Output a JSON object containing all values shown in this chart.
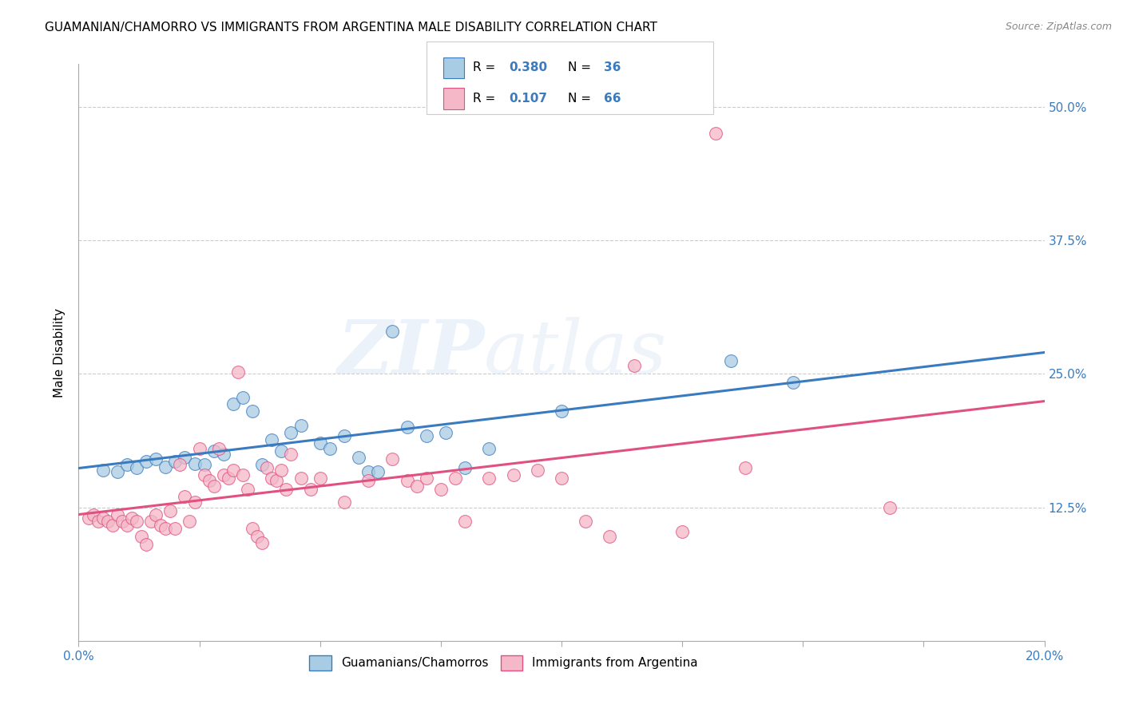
{
  "title": "GUAMANIAN/CHAMORRO VS IMMIGRANTS FROM ARGENTINA MALE DISABILITY CORRELATION CHART",
  "source": "Source: ZipAtlas.com",
  "ylabel": "Male Disability",
  "yticks": [
    "12.5%",
    "25.0%",
    "37.5%",
    "50.0%"
  ],
  "ytick_vals": [
    0.125,
    0.25,
    0.375,
    0.5
  ],
  "xlim": [
    0.0,
    0.2
  ],
  "ylim": [
    0.0,
    0.54
  ],
  "color_blue": "#a8cce4",
  "color_pink": "#f4b8c8",
  "trendline_blue": "#3a7bbf",
  "trendline_pink": "#e05080",
  "watermark_zip": "ZIP",
  "watermark_atlas": "atlas",
  "label1": "Guamanians/Chamorros",
  "label2": "Immigrants from Argentina",
  "blue_points": [
    [
      0.005,
      0.16
    ],
    [
      0.008,
      0.158
    ],
    [
      0.01,
      0.165
    ],
    [
      0.012,
      0.162
    ],
    [
      0.014,
      0.168
    ],
    [
      0.016,
      0.17
    ],
    [
      0.018,
      0.163
    ],
    [
      0.02,
      0.168
    ],
    [
      0.022,
      0.172
    ],
    [
      0.024,
      0.166
    ],
    [
      0.026,
      0.165
    ],
    [
      0.028,
      0.178
    ],
    [
      0.03,
      0.175
    ],
    [
      0.032,
      0.222
    ],
    [
      0.034,
      0.228
    ],
    [
      0.036,
      0.215
    ],
    [
      0.038,
      0.165
    ],
    [
      0.04,
      0.188
    ],
    [
      0.042,
      0.178
    ],
    [
      0.044,
      0.195
    ],
    [
      0.046,
      0.202
    ],
    [
      0.05,
      0.185
    ],
    [
      0.052,
      0.18
    ],
    [
      0.055,
      0.192
    ],
    [
      0.058,
      0.172
    ],
    [
      0.06,
      0.158
    ],
    [
      0.062,
      0.158
    ],
    [
      0.065,
      0.29
    ],
    [
      0.068,
      0.2
    ],
    [
      0.072,
      0.192
    ],
    [
      0.076,
      0.195
    ],
    [
      0.08,
      0.162
    ],
    [
      0.085,
      0.18
    ],
    [
      0.1,
      0.215
    ],
    [
      0.135,
      0.262
    ],
    [
      0.148,
      0.242
    ]
  ],
  "pink_points": [
    [
      0.002,
      0.115
    ],
    [
      0.003,
      0.118
    ],
    [
      0.004,
      0.112
    ],
    [
      0.005,
      0.115
    ],
    [
      0.006,
      0.112
    ],
    [
      0.007,
      0.108
    ],
    [
      0.008,
      0.118
    ],
    [
      0.009,
      0.112
    ],
    [
      0.01,
      0.108
    ],
    [
      0.011,
      0.115
    ],
    [
      0.012,
      0.112
    ],
    [
      0.013,
      0.098
    ],
    [
      0.014,
      0.09
    ],
    [
      0.015,
      0.112
    ],
    [
      0.016,
      0.118
    ],
    [
      0.017,
      0.108
    ],
    [
      0.018,
      0.105
    ],
    [
      0.019,
      0.122
    ],
    [
      0.02,
      0.105
    ],
    [
      0.021,
      0.165
    ],
    [
      0.022,
      0.135
    ],
    [
      0.023,
      0.112
    ],
    [
      0.024,
      0.13
    ],
    [
      0.025,
      0.18
    ],
    [
      0.026,
      0.155
    ],
    [
      0.027,
      0.15
    ],
    [
      0.028,
      0.145
    ],
    [
      0.029,
      0.18
    ],
    [
      0.03,
      0.155
    ],
    [
      0.031,
      0.152
    ],
    [
      0.032,
      0.16
    ],
    [
      0.033,
      0.252
    ],
    [
      0.034,
      0.155
    ],
    [
      0.035,
      0.142
    ],
    [
      0.036,
      0.105
    ],
    [
      0.037,
      0.098
    ],
    [
      0.038,
      0.092
    ],
    [
      0.039,
      0.162
    ],
    [
      0.04,
      0.152
    ],
    [
      0.041,
      0.15
    ],
    [
      0.042,
      0.16
    ],
    [
      0.043,
      0.142
    ],
    [
      0.044,
      0.175
    ],
    [
      0.046,
      0.152
    ],
    [
      0.048,
      0.142
    ],
    [
      0.05,
      0.152
    ],
    [
      0.055,
      0.13
    ],
    [
      0.06,
      0.15
    ],
    [
      0.065,
      0.17
    ],
    [
      0.068,
      0.15
    ],
    [
      0.07,
      0.145
    ],
    [
      0.072,
      0.152
    ],
    [
      0.075,
      0.142
    ],
    [
      0.078,
      0.152
    ],
    [
      0.08,
      0.112
    ],
    [
      0.085,
      0.152
    ],
    [
      0.09,
      0.155
    ],
    [
      0.095,
      0.16
    ],
    [
      0.1,
      0.152
    ],
    [
      0.105,
      0.112
    ],
    [
      0.11,
      0.098
    ],
    [
      0.115,
      0.258
    ],
    [
      0.125,
      0.102
    ],
    [
      0.132,
      0.475
    ],
    [
      0.138,
      0.162
    ],
    [
      0.168,
      0.125
    ]
  ]
}
